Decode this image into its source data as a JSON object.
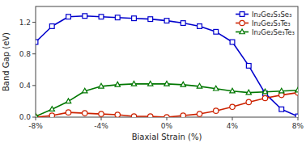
{
  "chart_data": {
    "type": "line",
    "x": [
      -8,
      -7,
      -6,
      -5,
      -4,
      -3,
      -2,
      -1,
      0,
      1,
      2,
      3,
      4,
      5,
      6,
      7,
      8
    ],
    "series": [
      {
        "name": "In₂Ge₂S₃Se₃",
        "color": "#0000cc",
        "marker": "square",
        "values": [
          0.95,
          1.15,
          1.27,
          1.28,
          1.27,
          1.26,
          1.25,
          1.24,
          1.22,
          1.19,
          1.15,
          1.08,
          0.95,
          0.65,
          0.3,
          0.1,
          0.01
        ]
      },
      {
        "name": "In₂Ge₂S₃Te₃",
        "color": "#cc2200",
        "marker": "circle",
        "values": [
          0.0,
          0.02,
          0.06,
          0.05,
          0.04,
          0.03,
          0.01,
          0.01,
          0.0,
          0.02,
          0.04,
          0.08,
          0.13,
          0.19,
          0.24,
          0.28,
          0.31
        ]
      },
      {
        "name": "In₂Ge₂Se₃Te₃",
        "color": "#007700",
        "marker": "triangle",
        "values": [
          0.01,
          0.1,
          0.2,
          0.33,
          0.39,
          0.41,
          0.42,
          0.42,
          0.42,
          0.41,
          0.39,
          0.36,
          0.33,
          0.31,
          0.32,
          0.33,
          0.34
        ]
      }
    ],
    "x_label": "Biaxial Strain (%)",
    "y_label": "Band Gap (eV)",
    "xlim": [
      -8,
      8
    ],
    "ylim": [
      0,
      1.4
    ],
    "xticks": [
      {
        "value": -8,
        "label": "-8%"
      },
      {
        "value": -4,
        "label": "-4%"
      },
      {
        "value": 0,
        "label": "0%"
      },
      {
        "value": 4,
        "label": "4%"
      },
      {
        "value": 8,
        "label": "8%"
      }
    ],
    "yticks": [
      {
        "value": 0.0,
        "label": "0.0"
      },
      0.4,
      0.8,
      1.2
    ],
    "grid": false,
    "legend": "upper right"
  }
}
